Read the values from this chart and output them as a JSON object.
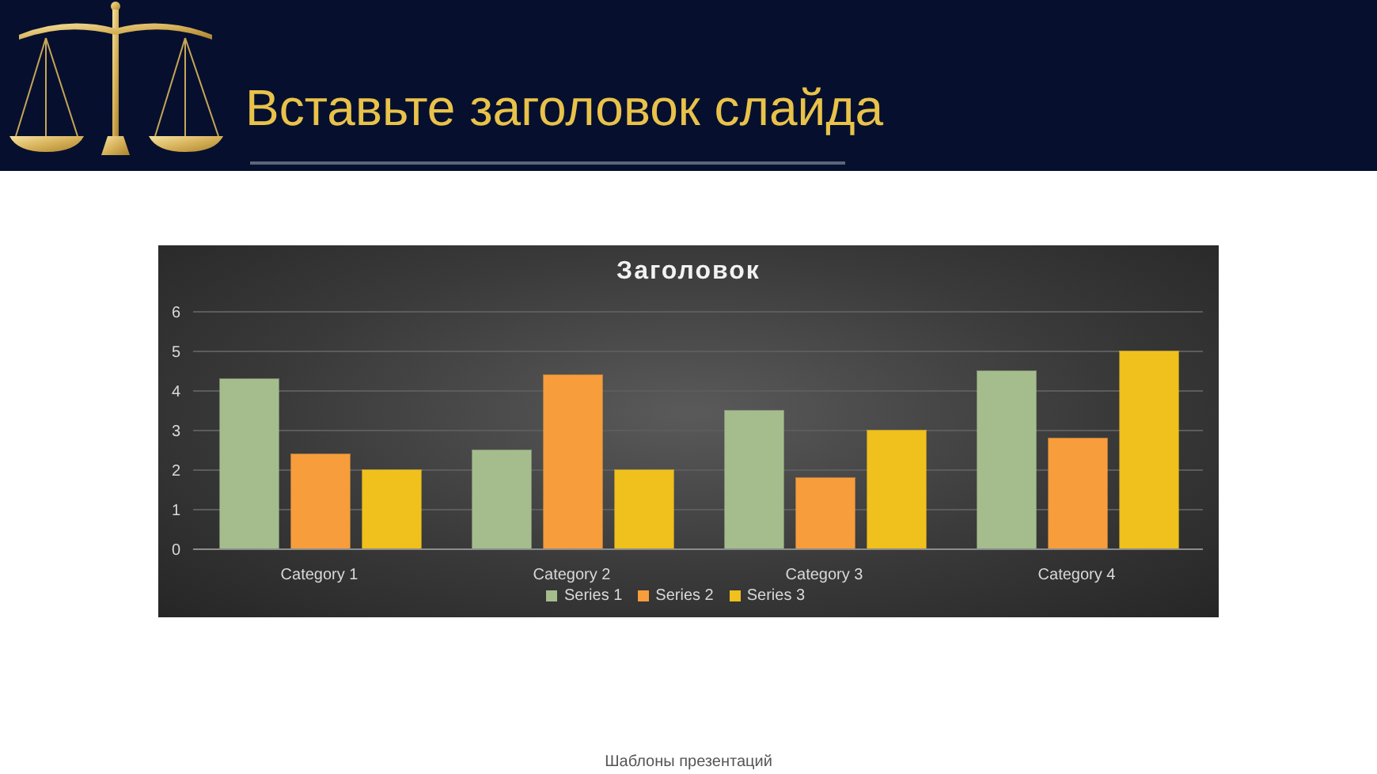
{
  "chart_data": {
    "type": "bar",
    "title": "Вставьте заголовок слайда",
    "subtitle": "Заголовок",
    "categories": [
      "Category 1",
      "Category 2",
      "Category 3",
      "Category 4"
    ],
    "series": [
      {
        "name": "Series 1",
        "color": "#a5bd8d",
        "values": [
          4.3,
          2.5,
          3.5,
          4.5
        ]
      },
      {
        "name": "Series 2",
        "color": "#f79d3c",
        "values": [
          2.4,
          4.4,
          1.8,
          2.8
        ]
      },
      {
        "name": "Series 3",
        "color": "#f0c01c",
        "values": [
          2,
          2,
          3,
          5
        ]
      }
    ],
    "ylim": [
      0,
      6
    ],
    "yticks": [
      0,
      1,
      2,
      3,
      4,
      5,
      6
    ],
    "grid": "y",
    "legend": "bottom",
    "annotations": [
      "Шаблоны презентаций"
    ]
  }
}
